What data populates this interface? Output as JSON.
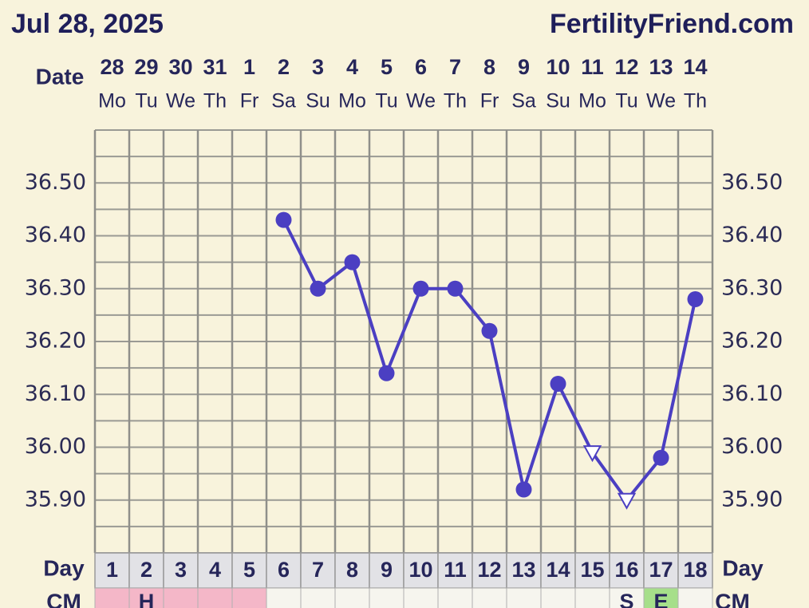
{
  "header": {
    "date": "Jul 28, 2025",
    "site": "FertilityFriend.com"
  },
  "chart_data": {
    "type": "line",
    "date_label": "Date",
    "day_label": "Day",
    "cm_label": "CM",
    "categories": [
      "28",
      "29",
      "30",
      "31",
      "1",
      "2",
      "3",
      "4",
      "5",
      "6",
      "7",
      "8",
      "9",
      "10",
      "11",
      "12",
      "13",
      "14"
    ],
    "weekdays": [
      "Mo",
      "Tu",
      "We",
      "Th",
      "Fr",
      "Sa",
      "Su",
      "Mo",
      "Tu",
      "We",
      "Th",
      "Fr",
      "Sa",
      "Su",
      "Mo",
      "Tu",
      "We",
      "Th"
    ],
    "cycle_days": [
      1,
      2,
      3,
      4,
      5,
      6,
      7,
      8,
      9,
      10,
      11,
      12,
      13,
      14,
      15,
      16,
      17,
      18
    ],
    "cm": [
      null,
      "H",
      null,
      null,
      null,
      null,
      null,
      null,
      null,
      null,
      null,
      null,
      null,
      null,
      null,
      "S",
      "E",
      null
    ],
    "cm_colors": [
      "#f4b7c8",
      "#f4b7c8",
      "#f4b7c8",
      "#f4b7c8",
      "#f4b7c8",
      "#f6f5ee",
      "#f6f5ee",
      "#f6f5ee",
      "#f6f5ee",
      "#f6f5ee",
      "#f6f5ee",
      "#f6f5ee",
      "#f6f5ee",
      "#f6f5ee",
      "#f6f5ee",
      "#f6f5ee",
      "#a6df8a",
      "#f6f5ee"
    ],
    "series": [
      {
        "color": "#4b3fc2",
        "values": [
          null,
          null,
          null,
          null,
          null,
          36.43,
          36.3,
          36.35,
          36.14,
          36.3,
          36.3,
          36.22,
          35.92,
          36.12,
          35.99,
          35.9,
          35.98,
          36.28
        ],
        "markers": [
          null,
          null,
          null,
          null,
          null,
          "circle",
          "circle",
          "circle",
          "circle",
          "circle",
          "circle",
          "circle",
          "circle",
          "circle",
          "triangle-open",
          "triangle-open",
          "circle",
          "circle"
        ]
      }
    ],
    "ylim": [
      35.8,
      36.6
    ],
    "yticks": [
      {
        "value": 35.9,
        "label": "35.90"
      },
      {
        "value": 36.0,
        "label": "36.00"
      },
      {
        "value": 36.1,
        "label": "36.10"
      },
      {
        "value": 36.2,
        "label": "36.20"
      },
      {
        "value": 36.3,
        "label": "36.30"
      },
      {
        "value": 36.4,
        "label": "36.40"
      },
      {
        "value": 36.5,
        "label": "36.50"
      }
    ],
    "ygrid": [
      35.8,
      35.85,
      35.9,
      35.95,
      36.0,
      36.05,
      36.1,
      36.15,
      36.2,
      36.25,
      36.3,
      36.35,
      36.4,
      36.45,
      36.5,
      36.55,
      36.6
    ]
  }
}
